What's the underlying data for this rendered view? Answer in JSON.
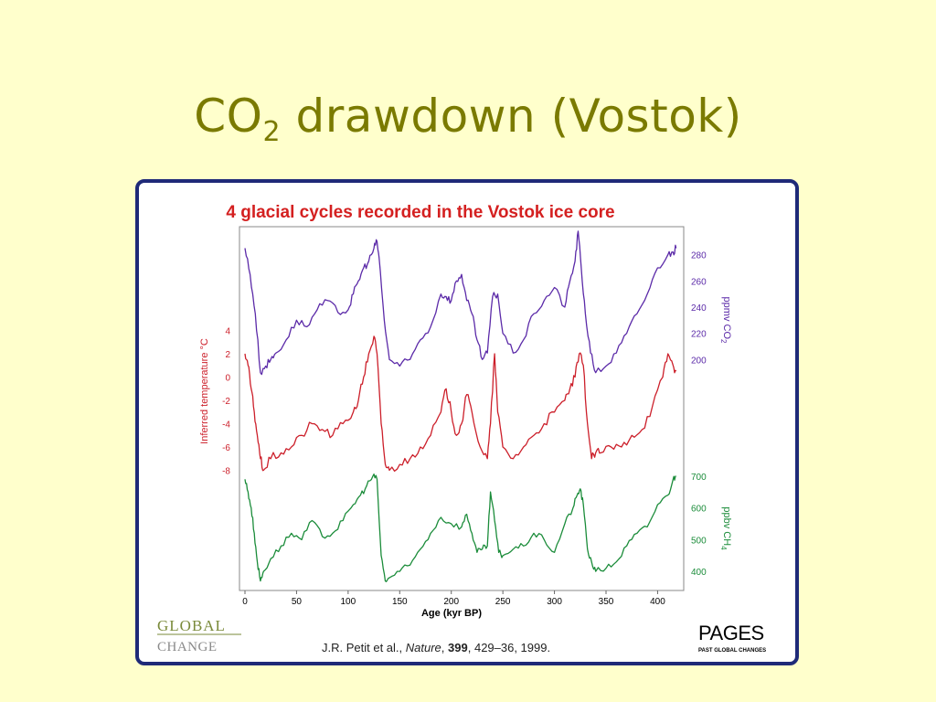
{
  "slide": {
    "title_main": "CO",
    "title_sub": "2",
    "title_rest": " drawdown (Vostok)"
  },
  "figure": {
    "logo_left_top": "GLOBAL",
    "logo_left_bottom": "CHANGE",
    "logo_right_top": "PAGES",
    "logo_right_bottom": "PAST GLOBAL CHANGES",
    "citation_author": "J.R. Petit et al., ",
    "citation_journal": "Nature",
    "citation_sep": ", ",
    "citation_volume": "399",
    "citation_pages": ", 429–36, 1999."
  },
  "colors": {
    "co2": "#5b2aa8",
    "temperature": "#cc1f2a",
    "ch4": "#1b8c3a",
    "chart_title": "#d42020",
    "frame": "#1f2a78",
    "slide_title": "#7a7a00"
  },
  "chart_data": {
    "type": "line",
    "title": "4 glacial cycles recorded in the Vostok ice core",
    "xlabel": "Age (kyr BP)",
    "xlim": [
      0,
      420
    ],
    "x_ticks": [
      0,
      50,
      100,
      150,
      200,
      250,
      300,
      350,
      400
    ],
    "series": [
      {
        "key": "co2",
        "axis_label": "ppmv CO2",
        "axis_label_main": "ppmv CO",
        "axis_label_sub": "2",
        "ylim": [
          180,
          300
        ],
        "ticks": [
          200,
          220,
          240,
          260,
          280
        ],
        "x": [
          0,
          5,
          10,
          15,
          20,
          25,
          30,
          40,
          50,
          60,
          70,
          80,
          90,
          100,
          105,
          110,
          115,
          120,
          125,
          128,
          130,
          135,
          140,
          150,
          160,
          170,
          180,
          190,
          195,
          200,
          205,
          210,
          215,
          220,
          225,
          230,
          235,
          240,
          245,
          250,
          260,
          270,
          280,
          290,
          300,
          310,
          315,
          320,
          323,
          326,
          330,
          335,
          340,
          350,
          360,
          370,
          380,
          390,
          400,
          410,
          415,
          418
        ],
        "values": [
          285,
          265,
          235,
          190,
          195,
          200,
          205,
          215,
          230,
          225,
          238,
          245,
          236,
          238,
          250,
          260,
          270,
          275,
          285,
          290,
          278,
          230,
          200,
          195,
          200,
          215,
          225,
          250,
          248,
          245,
          260,
          265,
          245,
          235,
          215,
          200,
          205,
          248,
          250,
          220,
          205,
          215,
          235,
          245,
          255,
          240,
          260,
          275,
          298,
          270,
          235,
          205,
          190,
          195,
          205,
          220,
          235,
          250,
          270,
          280,
          282,
          285
        ]
      },
      {
        "key": "temperature",
        "axis_label": "Inferred temperature °C",
        "ylim": [
          -10,
          6
        ],
        "ticks": [
          4,
          2,
          0,
          -2,
          -4,
          -6,
          -8
        ],
        "x": [
          0,
          3,
          6,
          9,
          12,
          15,
          18,
          25,
          35,
          45,
          55,
          65,
          75,
          85,
          95,
          105,
          110,
          115,
          120,
          125,
          128,
          132,
          136,
          140,
          150,
          160,
          170,
          180,
          190,
          195,
          200,
          205,
          210,
          215,
          220,
          228,
          235,
          238,
          242,
          245,
          250,
          260,
          270,
          280,
          290,
          300,
          310,
          315,
          320,
          324,
          328,
          332,
          336,
          340,
          345,
          355,
          365,
          375,
          385,
          395,
          405,
          410,
          415,
          418
        ],
        "values": [
          2,
          1,
          -1,
          -3,
          -5,
          -7,
          -8,
          -7,
          -6.5,
          -6,
          -5,
          -4,
          -4.5,
          -5,
          -4,
          -3,
          -2,
          0,
          2,
          3.5,
          2,
          -4,
          -7.5,
          -8,
          -7.5,
          -7,
          -6,
          -5,
          -3,
          -1,
          -3,
          -5,
          -4,
          -1.5,
          -3,
          -6,
          -7,
          -4,
          2,
          -3,
          -6,
          -7,
          -6,
          -5,
          -4,
          -3,
          -2,
          -1,
          0,
          2,
          1,
          -4,
          -7,
          -6.5,
          -6.5,
          -6,
          -6,
          -5,
          -4.5,
          -2.5,
          0,
          2,
          1,
          0.5
        ]
      },
      {
        "key": "ch4",
        "axis_label": "ppbv CH4",
        "axis_label_main": "ppbv CH",
        "axis_label_sub": "4",
        "ylim": [
          340,
          760
        ],
        "ticks": [
          400,
          500,
          600,
          700
        ],
        "x": [
          0,
          3,
          6,
          9,
          12,
          15,
          18,
          25,
          35,
          45,
          55,
          65,
          75,
          85,
          95,
          105,
          112,
          118,
          124,
          128,
          132,
          136,
          140,
          150,
          160,
          170,
          180,
          190,
          200,
          210,
          215,
          220,
          225,
          230,
          235,
          238,
          242,
          246,
          250,
          260,
          270,
          280,
          290,
          300,
          310,
          318,
          322,
          325,
          328,
          332,
          336,
          340,
          350,
          360,
          370,
          380,
          390,
          400,
          410,
          415,
          418
        ],
        "values": [
          690,
          650,
          600,
          520,
          430,
          370,
          400,
          440,
          480,
          520,
          500,
          560,
          510,
          520,
          560,
          610,
          640,
          670,
          700,
          690,
          450,
          370,
          380,
          400,
          420,
          470,
          520,
          570,
          550,
          540,
          580,
          520,
          460,
          470,
          480,
          650,
          560,
          460,
          450,
          470,
          480,
          520,
          500,
          460,
          550,
          600,
          640,
          660,
          610,
          470,
          430,
          400,
          410,
          430,
          480,
          520,
          540,
          610,
          640,
          690,
          700
        ]
      }
    ]
  }
}
